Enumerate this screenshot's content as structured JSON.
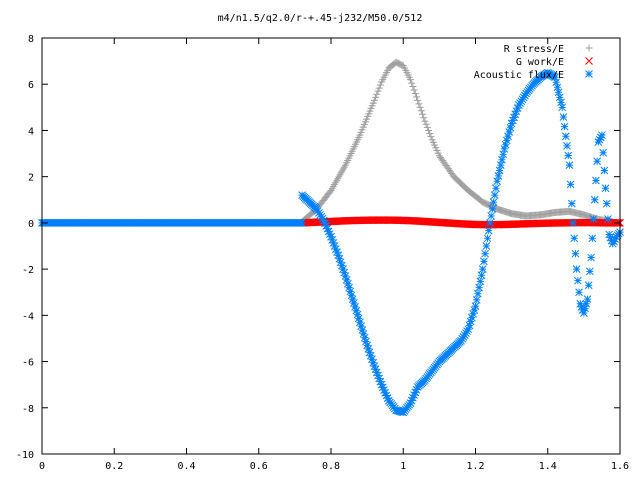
{
  "chart_data": {
    "type": "scatter",
    "title": "m4/n1.5/q2.0/r-+.45-j232/M50.0/512",
    "xlabel": "",
    "ylabel": "",
    "xlim": [
      0,
      1.6
    ],
    "ylim": [
      -10,
      8
    ],
    "x_ticks": [
      "0",
      "0.2",
      "0.4",
      "0.6",
      "0.8",
      "1",
      "1.2",
      "1.4",
      "1.6"
    ],
    "y_ticks": [
      "8",
      "6",
      "4",
      "2",
      "0",
      "-2",
      "-4",
      "-6",
      "-8",
      "-10"
    ],
    "grid": false,
    "legend_position": "top-right",
    "series": [
      {
        "name": "R stress/E",
        "marker": "plus",
        "color": "#a0a0a0",
        "x": [
          0.72,
          0.76,
          0.8,
          0.84,
          0.88,
          0.92,
          0.94,
          0.96,
          0.98,
          1.0,
          1.02,
          1.04,
          1.06,
          1.08,
          1.1,
          1.14,
          1.18,
          1.22,
          1.26,
          1.3,
          1.34,
          1.38,
          1.42,
          1.46,
          1.5,
          1.54,
          1.58
        ],
        "y": [
          0.05,
          0.6,
          1.4,
          2.5,
          3.8,
          5.3,
          6.1,
          6.7,
          6.95,
          6.8,
          6.2,
          5.3,
          4.4,
          3.6,
          2.9,
          2.0,
          1.4,
          0.9,
          0.6,
          0.4,
          0.3,
          0.35,
          0.45,
          0.5,
          0.35,
          0.15,
          0.05
        ]
      },
      {
        "name": "G work/E",
        "marker": "cross",
        "color": "#ff0000",
        "x": [
          0.72,
          0.76,
          0.8,
          0.84,
          0.88,
          0.92,
          0.96,
          1.0,
          1.04,
          1.08,
          1.12,
          1.16,
          1.2,
          1.24,
          1.28,
          1.32,
          1.36,
          1.4,
          1.44,
          1.48,
          1.52,
          1.56,
          1.6
        ],
        "y": [
          0.0,
          0.03,
          0.06,
          0.09,
          0.11,
          0.12,
          0.12,
          0.11,
          0.08,
          0.04,
          0.0,
          -0.04,
          -0.07,
          -0.08,
          -0.07,
          -0.05,
          -0.03,
          -0.01,
          0.0,
          0.01,
          0.01,
          0.0,
          0.0
        ]
      },
      {
        "name": "Acoustic flux/E",
        "marker": "star",
        "color": "#0080ff",
        "x": [
          0.72,
          0.74,
          0.76,
          0.78,
          0.8,
          0.82,
          0.84,
          0.86,
          0.88,
          0.9,
          0.92,
          0.94,
          0.96,
          0.98,
          1.0,
          1.02,
          1.04,
          1.06,
          1.08,
          1.1,
          1.12,
          1.14,
          1.16,
          1.18,
          1.2,
          1.22,
          1.24,
          1.26,
          1.28,
          1.3,
          1.32,
          1.34,
          1.36,
          1.38,
          1.4,
          1.42,
          1.44,
          1.46,
          1.47,
          1.48,
          1.49,
          1.5,
          1.51,
          1.52,
          1.53,
          1.54,
          1.55,
          1.56,
          1.57,
          1.58,
          1.59,
          1.6
        ],
        "y": [
          1.2,
          0.9,
          0.6,
          0.1,
          -0.6,
          -1.4,
          -2.3,
          -3.3,
          -4.3,
          -5.3,
          -6.2,
          -7.0,
          -7.7,
          -8.1,
          -8.2,
          -7.8,
          -7.1,
          -6.8,
          -6.4,
          -6.0,
          -5.7,
          -5.4,
          -5.1,
          -4.6,
          -3.6,
          -2.0,
          0.0,
          1.8,
          3.2,
          4.3,
          5.1,
          5.6,
          6.0,
          6.3,
          6.5,
          6.3,
          5.0,
          2.5,
          0.0,
          -2.0,
          -3.5,
          -3.9,
          -3.3,
          -1.5,
          1.0,
          3.5,
          3.8,
          1.5,
          -0.5,
          -0.9,
          -0.6,
          -0.4
        ]
      }
    ]
  }
}
